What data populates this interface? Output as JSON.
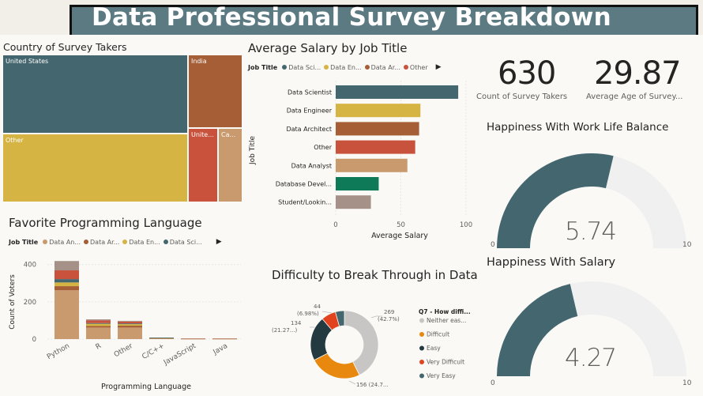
{
  "header": {
    "title": "Data Professional Survey Breakdown"
  },
  "colors": {
    "teal": "#44666e",
    "gold": "#d6b443",
    "brown": "#a55e36",
    "red": "#c9523c",
    "tan": "#c99a6e",
    "green": "#0f7a58",
    "taupe": "#a59187",
    "grey": "#c8c6c4",
    "orange": "#e8880e",
    "navy": "#233a40"
  },
  "treemap": {
    "title": "Country of Survey Takers",
    "cells": [
      {
        "label": "United States",
        "color": "#44666e"
      },
      {
        "label": "Other",
        "color": "#d6b443"
      },
      {
        "label": "India",
        "color": "#a55e36"
      },
      {
        "label": "Unite...",
        "color": "#c9523c"
      },
      {
        "label": "Ca...",
        "color": "#c99a6e"
      }
    ]
  },
  "salary": {
    "title": "Average Salary by Job Title",
    "legend_label": "Job Title",
    "legend": [
      {
        "label": "Data Sci...",
        "color": "#44666e"
      },
      {
        "label": "Data En...",
        "color": "#d6b443"
      },
      {
        "label": "Data Ar...",
        "color": "#a55e36"
      },
      {
        "label": "Other",
        "color": "#c9523c"
      }
    ],
    "xlabel": "Average Salary",
    "ylabel": "Job Title"
  },
  "kpis": [
    {
      "value": "630",
      "label": "Count of Survey Takers"
    },
    {
      "value": "29.87",
      "label": "Average Age of Survey..."
    }
  ],
  "gauges": [
    {
      "title": "Happiness With Work Life Balance",
      "value_text": "5.74",
      "min": "0",
      "max": "10"
    },
    {
      "title": "Happiness With Salary",
      "value_text": "4.27",
      "min": "0",
      "max": "10"
    }
  ],
  "languages": {
    "title": "Favorite Programming Language",
    "legend_label": "Job Title",
    "legend": [
      {
        "label": "Data An...",
        "color": "#c99a6e"
      },
      {
        "label": "Data Ar...",
        "color": "#a55e36"
      },
      {
        "label": "Data En...",
        "color": "#d6b443"
      },
      {
        "label": "Data Sci...",
        "color": "#44666e"
      }
    ],
    "xlabel": "Programming Language",
    "ylabel": "Count of Voters"
  },
  "difficulty": {
    "title": "Difficulty to Break Through in Data",
    "legend_title": "Q7 - How diffi...",
    "legend": [
      {
        "label": "Neither eas...",
        "color": "#c8c6c4"
      },
      {
        "label": "Difficult",
        "color": "#e8880e"
      },
      {
        "label": "Easy",
        "color": "#233a40"
      },
      {
        "label": "Very Difficult",
        "color": "#e0431e"
      },
      {
        "label": "Very Easy",
        "color": "#44666e"
      }
    ],
    "labels": {
      "neither": [
        "269",
        "(42.7%)"
      ],
      "difficult": [
        "156 (24.7...",
        ""
      ],
      "easy": [
        "134",
        "(21.27...)"
      ],
      "very_difficult": [
        "44",
        "(6.98%)"
      ]
    }
  },
  "chart_data": [
    {
      "type": "bar",
      "title": "Average Salary by Job Title",
      "xlabel": "Average Salary",
      "ylabel": "Job Title",
      "categories": [
        "Data Scientist",
        "Data Engineer",
        "Data Architect",
        "Other",
        "Data Analyst",
        "Database Devel...",
        "Student/Lookin..."
      ],
      "values": [
        94,
        65,
        64,
        61,
        55,
        33,
        27
      ],
      "colors": [
        "#44666e",
        "#d6b443",
        "#a55e36",
        "#c9523c",
        "#c99a6e",
        "#0f7a58",
        "#a59187"
      ],
      "xlim": [
        0,
        100
      ],
      "xticks": [
        "0",
        "50",
        "100"
      ]
    },
    {
      "type": "bar",
      "title": "Favorite Programming Language",
      "xlabel": "Programming Language",
      "ylabel": "Count of Voters",
      "categories": [
        "Python",
        "R",
        "Other",
        "C/C++",
        "JavaScript",
        "Java"
      ],
      "series": [
        {
          "name": "Data An...",
          "values": [
            262,
            62,
            62,
            5,
            2,
            2
          ],
          "color": "#c99a6e"
        },
        {
          "name": "Data Ar...",
          "values": [
            22,
            8,
            10,
            1,
            1,
            1
          ],
          "color": "#a55e36"
        },
        {
          "name": "Data En...",
          "values": [
            20,
            12,
            8,
            1,
            0,
            0
          ],
          "color": "#d6b443"
        },
        {
          "name": "Data Sci...",
          "values": [
            18,
            4,
            4,
            1,
            0,
            0
          ],
          "color": "#44666e"
        },
        {
          "name": "",
          "values": [
            47,
            14,
            10,
            0,
            0,
            0
          ],
          "color": "#c9523c"
        },
        {
          "name": "",
          "values": [
            50,
            6,
            4,
            0,
            0,
            0
          ],
          "color": "#a59187"
        }
      ],
      "ylim": [
        0,
        420
      ],
      "yticks": [
        "0",
        "200",
        "400"
      ]
    },
    {
      "type": "pie",
      "title": "Difficulty to Break Through in Data",
      "categories": [
        "Neither easy nor difficult",
        "Difficult",
        "Easy",
        "Very Difficult",
        "Very Easy"
      ],
      "values": [
        269,
        156,
        134,
        44,
        27
      ],
      "colors": [
        "#c8c6c4",
        "#e8880e",
        "#233a40",
        "#e0431e",
        "#44666e"
      ]
    }
  ]
}
